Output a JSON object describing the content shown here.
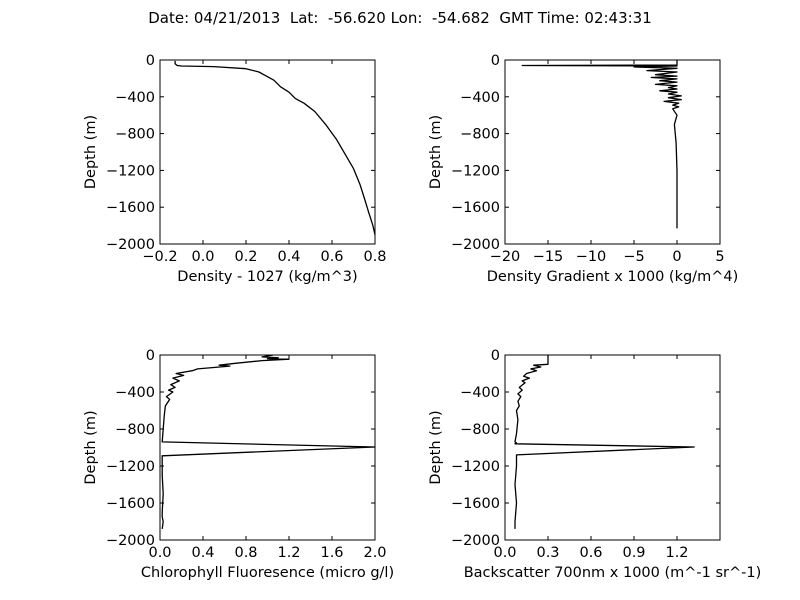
{
  "figure": {
    "title": "Date: 04/21/2013  Lat:  -56.620 Lon:  -54.682  GMT Time: 02:43:31"
  },
  "chart_data": [
    {
      "type": "line",
      "title": "",
      "xlabel": "Density - 1027 (kg/m^3)",
      "ylabel": "Depth (m)",
      "xlim": [
        -0.2,
        0.8
      ],
      "ylim": [
        -2000,
        0
      ],
      "xticks": [
        -0.2,
        0.0,
        0.2,
        0.4,
        0.6,
        0.8
      ],
      "xticklabels": [
        "−0.2",
        "0.0",
        "0.2",
        "0.4",
        "0.6",
        "0.8"
      ],
      "yticks": [
        0,
        -400,
        -800,
        -1200,
        -1600,
        -2000
      ],
      "yticklabels": [
        "0",
        "−400",
        "−800",
        "−1200",
        "−1600",
        "−2000"
      ],
      "grid": false,
      "series": [
        {
          "x": [
            -0.13,
            -0.13,
            -0.12,
            -0.1,
            0.05,
            0.2,
            0.26,
            0.29,
            0.33,
            0.36,
            0.4,
            0.43,
            0.47,
            0.52,
            0.57,
            0.62,
            0.66,
            0.7,
            0.73,
            0.75,
            0.77,
            0.79,
            0.8
          ],
          "y": [
            -10,
            -40,
            -60,
            -65,
            -72,
            -95,
            -130,
            -170,
            -220,
            -290,
            -350,
            -420,
            -470,
            -560,
            -700,
            -860,
            -1020,
            -1180,
            -1350,
            -1500,
            -1650,
            -1800,
            -1900
          ]
        }
      ]
    },
    {
      "type": "line",
      "title": "",
      "xlabel": "Density Gradient x 1000 (kg/m^4)",
      "ylabel": "Depth (m)",
      "xlim": [
        -20,
        5
      ],
      "ylim": [
        -2000,
        0
      ],
      "xticks": [
        -20,
        -15,
        -10,
        -5,
        0,
        5
      ],
      "xticklabels": [
        "−20",
        "−15",
        "−10",
        "−5",
        "0",
        "5"
      ],
      "yticks": [
        0,
        -400,
        -800,
        -1200,
        -1600,
        -2000
      ],
      "yticklabels": [
        "0",
        "−400",
        "−800",
        "−1200",
        "−1600",
        "−2000"
      ],
      "grid": false,
      "series": [
        {
          "x": [
            0,
            0,
            -18,
            0,
            -5,
            0,
            -3.5,
            0,
            -2.5,
            0,
            -3,
            0,
            -2,
            0,
            -2.5,
            0,
            -1,
            0,
            -2,
            0,
            -1,
            0.5,
            -1,
            0.5,
            -1.5,
            0.2,
            -0.5,
            0.2,
            -0.5,
            0,
            -0.3,
            -0.1,
            0,
            0,
            0
          ],
          "y": [
            0,
            -55,
            -60,
            -65,
            -75,
            -90,
            -115,
            -130,
            -160,
            -175,
            -190,
            -205,
            -225,
            -240,
            -265,
            -280,
            -300,
            -315,
            -335,
            -350,
            -370,
            -390,
            -410,
            -430,
            -450,
            -470,
            -490,
            -510,
            -530,
            -600,
            -700,
            -900,
            -1200,
            -1500,
            -1830
          ]
        }
      ]
    },
    {
      "type": "line",
      "title": "",
      "xlabel": "Chlorophyll Fluoresence (micro g/l)",
      "ylabel": "Depth (m)",
      "xlim": [
        0.0,
        2.0
      ],
      "ylim": [
        -2000,
        0
      ],
      "xticks": [
        0.0,
        0.4,
        0.8,
        1.2,
        1.6,
        2.0
      ],
      "xticklabels": [
        "0.0",
        "0.4",
        "0.8",
        "1.2",
        "1.6",
        "2.0"
      ],
      "yticks": [
        0,
        -400,
        -800,
        -1200,
        -1600,
        -2000
      ],
      "yticklabels": [
        "0",
        "−400",
        "−800",
        "−1200",
        "−1600",
        "−2000"
      ],
      "grid": false,
      "series": [
        {
          "x": [
            1.05,
            0.95,
            1.1,
            1.0,
            1.2,
            0.95,
            0.7,
            0.55,
            0.65,
            0.35,
            0.3,
            0.15,
            0.22,
            0.12,
            0.18,
            0.1,
            0.14,
            0.08,
            0.12,
            0.06,
            0.09,
            0.05,
            0.04,
            0.03,
            0.02,
            2.0,
            0.02,
            0.02,
            0.03,
            0.02,
            0.02,
            0.03,
            0.02
          ],
          "y": [
            0,
            -20,
            -30,
            -40,
            -45,
            -60,
            -90,
            -110,
            -120,
            -150,
            -170,
            -200,
            -220,
            -250,
            -280,
            -320,
            -350,
            -380,
            -400,
            -450,
            -480,
            -550,
            -650,
            -800,
            -940,
            -995,
            -1090,
            -1300,
            -1500,
            -1700,
            -1750,
            -1800,
            -1880
          ]
        }
      ]
    },
    {
      "type": "line",
      "title": "",
      "xlabel": "Backscatter 700nm x 1000 (m^-1 sr^-1)",
      "ylabel": "Depth (m)",
      "xlim": [
        0.0,
        1.5
      ],
      "ylim": [
        -2000,
        0
      ],
      "xticks": [
        0.0,
        0.3,
        0.6,
        0.9,
        1.2
      ],
      "xticklabels": [
        "0.0",
        "0.3",
        "0.6",
        "0.9",
        "1.2"
      ],
      "yticks": [
        0,
        -400,
        -800,
        -1200,
        -1600,
        -2000
      ],
      "yticklabels": [
        "0",
        "−400",
        "−800",
        "−1200",
        "−1600",
        "−2000"
      ],
      "grid": false,
      "series": [
        {
          "x": [
            0.3,
            0.3,
            0.2,
            0.25,
            0.18,
            0.22,
            0.15,
            0.13,
            0.17,
            0.12,
            0.14,
            0.1,
            0.12,
            0.09,
            0.11,
            0.09,
            0.1,
            0.08,
            0.09,
            0.08,
            0.07,
            0.08,
            0.07,
            1.32,
            0.08,
            0.08,
            0.07,
            0.08,
            0.07,
            0.07
          ],
          "y": [
            0,
            -100,
            -110,
            -130,
            -150,
            -170,
            -200,
            -230,
            -250,
            -280,
            -300,
            -350,
            -380,
            -420,
            -450,
            -500,
            -550,
            -600,
            -700,
            -850,
            -940,
            -950,
            -960,
            -995,
            -1080,
            -1200,
            -1400,
            -1600,
            -1800,
            -1880
          ]
        }
      ]
    }
  ]
}
